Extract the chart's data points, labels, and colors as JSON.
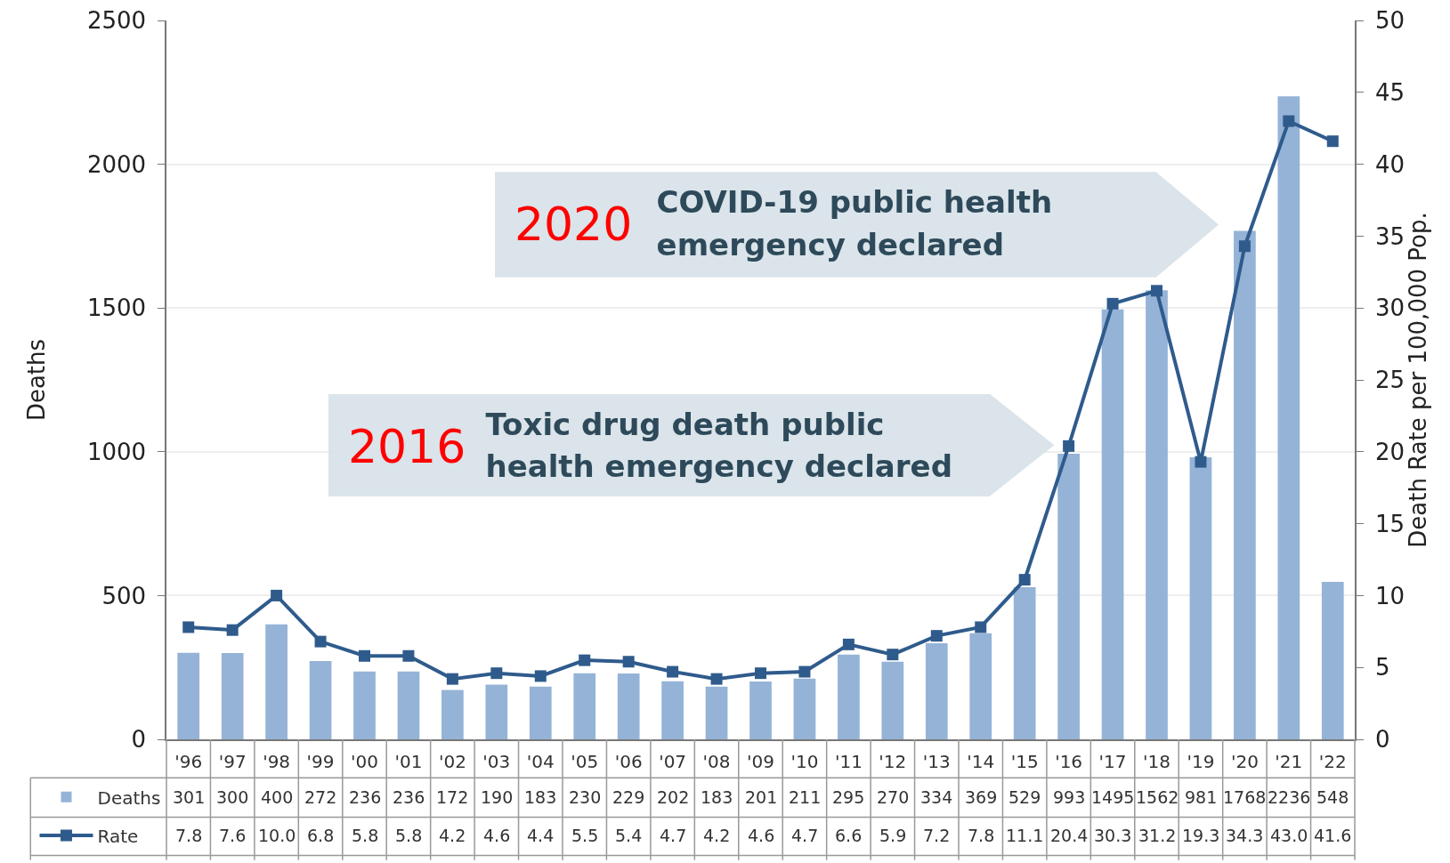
{
  "chart_data": {
    "type": "bar",
    "categories": [
      "'96",
      "'97",
      "'98",
      "'99",
      "'00",
      "'01",
      "'02",
      "'03",
      "'04",
      "'05",
      "'06",
      "'07",
      "'08",
      "'09",
      "'10",
      "'11",
      "'12",
      "'13",
      "'14",
      "'15",
      "'16",
      "'17",
      "'18",
      "'19",
      "'20",
      "'21",
      "'22"
    ],
    "series": [
      {
        "name": "Deaths",
        "color": "#95b3d7",
        "values": [
          301,
          300,
          400,
          272,
          236,
          236,
          172,
          190,
          183,
          230,
          229,
          202,
          183,
          201,
          211,
          295,
          270,
          334,
          369,
          529,
          993,
          1495,
          1562,
          981,
          1768,
          2236,
          548
        ]
      },
      {
        "name": "Rate",
        "type": "line",
        "axis": "y2",
        "color": "#2f5b8c",
        "marker": "square",
        "line_style": "solid",
        "values": [
          7.8,
          7.6,
          10.0,
          6.8,
          5.8,
          5.8,
          4.2,
          4.6,
          4.4,
          5.5,
          5.4,
          4.7,
          4.2,
          4.6,
          4.7,
          6.6,
          5.9,
          7.2,
          7.8,
          11.1,
          20.4,
          30.3,
          31.2,
          19.3,
          34.3,
          43.0,
          41.6
        ],
        "value_labels": [
          "7.8",
          "7.6",
          "10.0",
          "6.8",
          "5.8",
          "5.8",
          "4.2",
          "4.6",
          "4.4",
          "5.5",
          "5.4",
          "4.7",
          "4.2",
          "4.6",
          "4.7",
          "6.6",
          "5.9",
          "7.2",
          "7.8",
          "11.1",
          "20.4",
          "30.3",
          "31.2",
          "19.3",
          "34.3",
          "43.0",
          "41.6"
        ]
      }
    ],
    "ylabel": "Deaths",
    "y2label": "Death Rate per 100,000 Pop.",
    "ylim": [
      0,
      2500
    ],
    "yticks": [
      0,
      500,
      1000,
      1500,
      2000,
      2500
    ],
    "y2lim": [
      0,
      50
    ],
    "y2ticks": [
      0,
      5,
      10,
      15,
      20,
      25,
      30,
      35,
      40,
      45,
      50
    ],
    "grid": "y",
    "legend": "bottom left",
    "data_labels": true,
    "annotations": [
      "2020",
      "COVID-19 public health\nemergency declared",
      "2016",
      "Toxic drug death public\nhealth emergency declared"
    ]
  }
}
